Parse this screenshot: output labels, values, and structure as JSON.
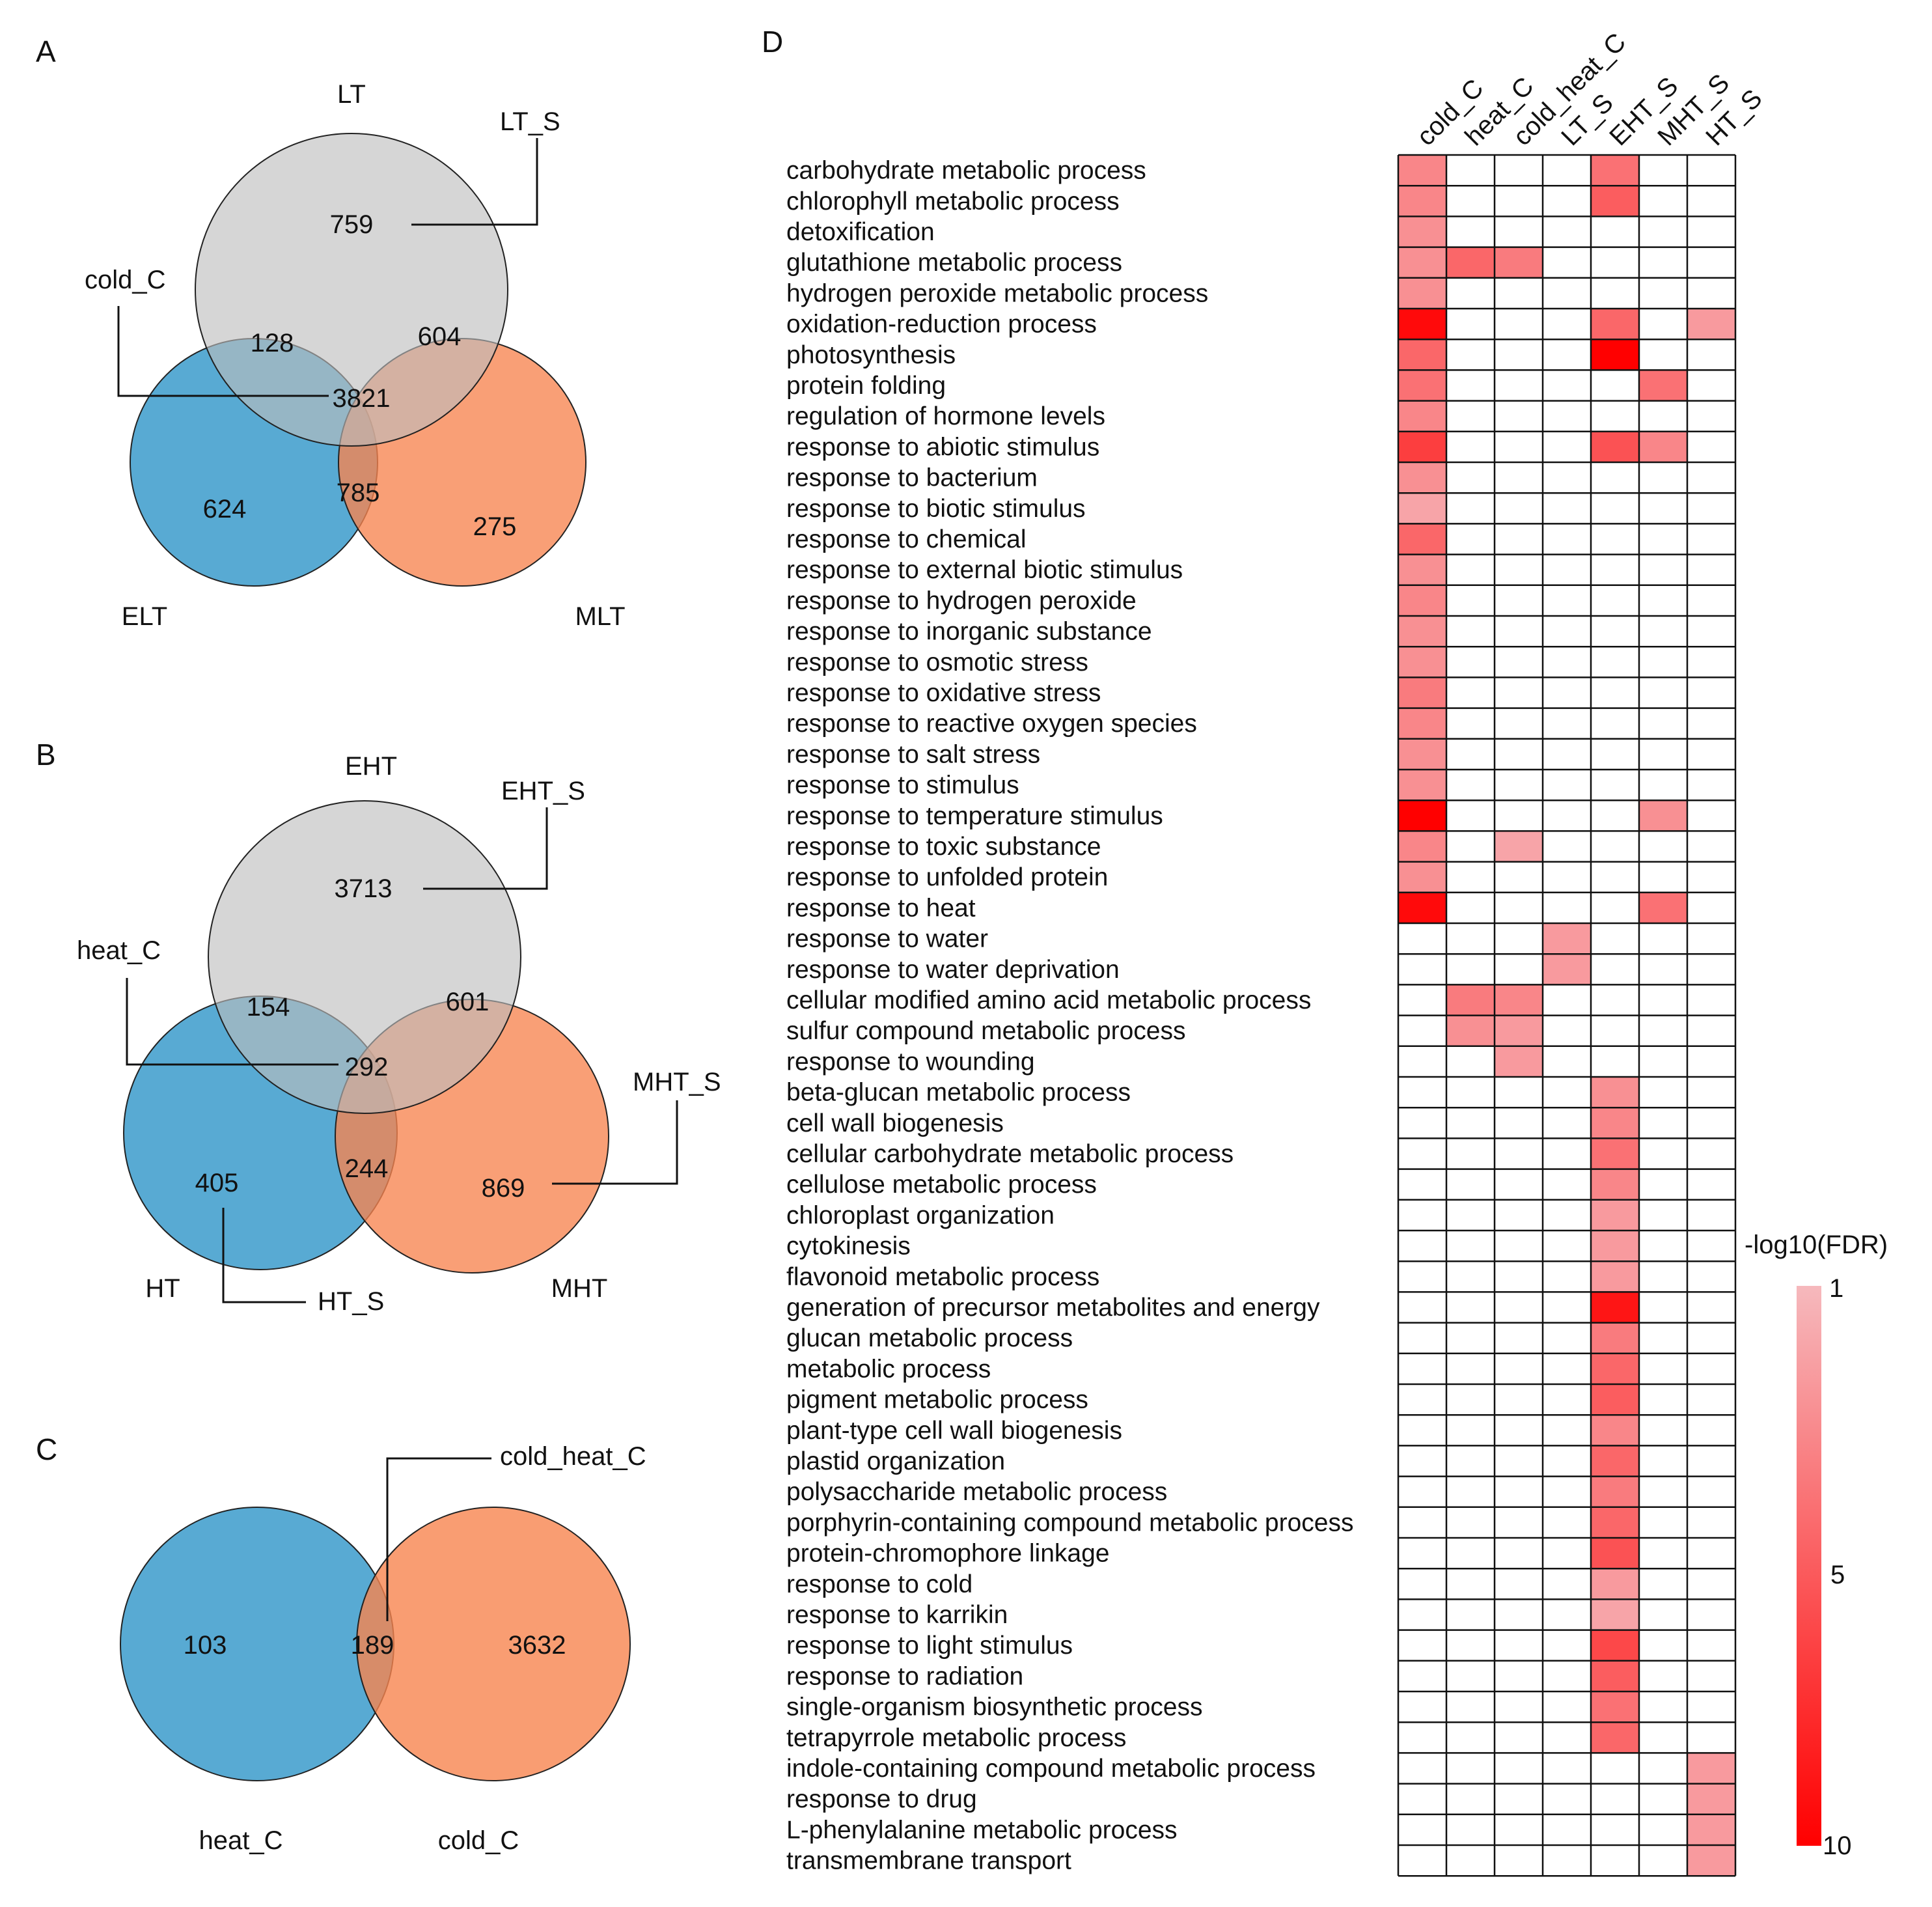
{
  "panels": {
    "A": {
      "letter": "A",
      "labels": {
        "top": "LT",
        "left": "ELT",
        "right": "MLT"
      },
      "callouts": {
        "top_only": "LT_S",
        "center": "cold_C"
      },
      "values": {
        "top_only": "759",
        "top_left": "128",
        "top_right": "604",
        "center": "3821",
        "left_only": "624",
        "left_right": "785",
        "right_only": "275"
      }
    },
    "B": {
      "letter": "B",
      "labels": {
        "top": "EHT",
        "left": "HT",
        "right": "MHT"
      },
      "callouts": {
        "top_only": "EHT_S",
        "center": "heat_C",
        "right_only": "MHT_S",
        "left_only": "HT_S"
      },
      "values": {
        "top_only": "3713",
        "top_left": "154",
        "top_right": "601",
        "center": "292",
        "left_only": "405",
        "left_right": "244",
        "right_only": "869"
      }
    },
    "C": {
      "letter": "C",
      "labels": {
        "left": "heat_C",
        "right": "cold_C"
      },
      "callouts": {
        "overlap": "cold_heat_C"
      },
      "values": {
        "left_only": "103",
        "overlap": "189",
        "right_only": "3632"
      }
    },
    "D": {
      "letter": "D"
    }
  },
  "colors": {
    "gray_circle": "#bdbdbd",
    "blue_circle": "#4aa3cf",
    "orange_circle": "#f7844f",
    "heat_low": "#f6b9bd",
    "heat_high": "#ff0000",
    "cell_border": "#111111"
  },
  "chart_data": {
    "type": "heatmap",
    "title": "",
    "legend_title": "-log10(FDR)",
    "legend_ticks": [
      "1",
      "5",
      "10"
    ],
    "value_range": [
      1,
      10
    ],
    "columns": [
      "cold_C",
      "heat_C",
      "cold_heat_C",
      "LT_S",
      "EHT_S",
      "MHT_S",
      "HT_S"
    ],
    "rows": [
      "carbohydrate metabolic process",
      "chlorophyll metabolic process",
      "detoxification",
      "glutathione metabolic process",
      "hydrogen peroxide metabolic process",
      "oxidation-reduction process",
      "photosynthesis",
      "protein folding",
      "regulation of hormone levels",
      "response to abiotic stimulus",
      "response to bacterium",
      "response to biotic stimulus",
      "response to chemical",
      "response to external biotic stimulus",
      "response to hydrogen peroxide",
      "response to inorganic substance",
      "response to osmotic stress",
      "response to oxidative stress",
      "response to reactive oxygen species",
      "response to salt stress",
      "response to stimulus",
      "response to temperature stimulus",
      "response to toxic substance",
      "response to unfolded protein",
      "response to heat",
      "response to water",
      "response to water deprivation",
      "cellular modified amino acid metabolic process",
      "sulfur compound metabolic process",
      "response to wounding",
      "beta-glucan metabolic process",
      "cell wall biogenesis",
      "cellular carbohydrate metabolic process",
      "cellulose metabolic process",
      "chloroplast organization",
      "cytokinesis",
      "flavonoid metabolic process",
      "generation of precursor metabolites and energy",
      "glucan metabolic process",
      "metabolic process",
      "pigment metabolic process",
      "plant-type cell wall biogenesis",
      "plastid organization",
      "polysaccharide metabolic process",
      "porphyrin-containing compound metabolic process",
      "protein-chromophore linkage",
      "response to cold",
      "response to karrikin",
      "response to light stimulus",
      "response to radiation",
      "single-organism biosynthetic process",
      "tetrapyrrole metabolic process",
      "indole-containing compound metabolic process",
      "response to drug",
      "L-phenylalanine metabolic process",
      "transmembrane transport"
    ],
    "values": [
      [
        3.5,
        null,
        null,
        null,
        4.5,
        null,
        null
      ],
      [
        3.5,
        null,
        null,
        null,
        5.5,
        null,
        null
      ],
      [
        3,
        null,
        null,
        null,
        null,
        null,
        null
      ],
      [
        3,
        5,
        4,
        null,
        null,
        null,
        null
      ],
      [
        3,
        null,
        null,
        null,
        null,
        null,
        null
      ],
      [
        9.5,
        null,
        null,
        null,
        5,
        null,
        2.5
      ],
      [
        5,
        null,
        null,
        null,
        10,
        null,
        null
      ],
      [
        4.5,
        null,
        null,
        null,
        null,
        4.5,
        null
      ],
      [
        3.5,
        null,
        null,
        null,
        null,
        null,
        null
      ],
      [
        7,
        null,
        null,
        null,
        6,
        3.5,
        null
      ],
      [
        3,
        null,
        null,
        null,
        null,
        null,
        null
      ],
      [
        2,
        null,
        null,
        null,
        null,
        null,
        null
      ],
      [
        5,
        null,
        null,
        null,
        null,
        null,
        null
      ],
      [
        3,
        null,
        null,
        null,
        null,
        null,
        null
      ],
      [
        3.5,
        null,
        null,
        null,
        null,
        null,
        null
      ],
      [
        3,
        null,
        null,
        null,
        null,
        null,
        null
      ],
      [
        3,
        null,
        null,
        null,
        null,
        null,
        null
      ],
      [
        4,
        null,
        null,
        null,
        null,
        null,
        null
      ],
      [
        3.5,
        null,
        null,
        null,
        null,
        null,
        null
      ],
      [
        3,
        null,
        null,
        null,
        null,
        null,
        null
      ],
      [
        3,
        null,
        null,
        null,
        null,
        null,
        null
      ],
      [
        10,
        null,
        null,
        null,
        null,
        3,
        null
      ],
      [
        3.5,
        null,
        2,
        null,
        null,
        null,
        null
      ],
      [
        3,
        null,
        null,
        null,
        null,
        null,
        null
      ],
      [
        9.5,
        null,
        null,
        null,
        null,
        4.5,
        null
      ],
      [
        null,
        null,
        null,
        2.5,
        null,
        null,
        null
      ],
      [
        null,
        null,
        null,
        2.5,
        null,
        null,
        null
      ],
      [
        null,
        4,
        3.5,
        null,
        null,
        null,
        null
      ],
      [
        null,
        3,
        2.5,
        null,
        null,
        null,
        null
      ],
      [
        null,
        null,
        2.5,
        null,
        null,
        null,
        null
      ],
      [
        null,
        null,
        null,
        null,
        3,
        null,
        null
      ],
      [
        null,
        null,
        null,
        null,
        3.5,
        null,
        null
      ],
      [
        null,
        null,
        null,
        null,
        4.5,
        null,
        null
      ],
      [
        null,
        null,
        null,
        null,
        3.5,
        null,
        null
      ],
      [
        null,
        null,
        null,
        null,
        2.5,
        null,
        null
      ],
      [
        null,
        null,
        null,
        null,
        2.5,
        null,
        null
      ],
      [
        null,
        null,
        null,
        null,
        2.5,
        null,
        null
      ],
      [
        null,
        null,
        null,
        null,
        9,
        null,
        null
      ],
      [
        null,
        null,
        null,
        null,
        4,
        null,
        null
      ],
      [
        null,
        null,
        null,
        null,
        5,
        null,
        null
      ],
      [
        null,
        null,
        null,
        null,
        5.5,
        null,
        null
      ],
      [
        null,
        null,
        null,
        null,
        3.5,
        null,
        null
      ],
      [
        null,
        null,
        null,
        null,
        5,
        null,
        null
      ],
      [
        null,
        null,
        null,
        null,
        4,
        null,
        null
      ],
      [
        null,
        null,
        null,
        null,
        5,
        null,
        null
      ],
      [
        null,
        null,
        null,
        null,
        6,
        null,
        null
      ],
      [
        null,
        null,
        null,
        null,
        2.5,
        null,
        null
      ],
      [
        null,
        null,
        null,
        null,
        2,
        null,
        null
      ],
      [
        null,
        null,
        null,
        null,
        6.5,
        null,
        null
      ],
      [
        null,
        null,
        null,
        null,
        5.5,
        null,
        null
      ],
      [
        null,
        null,
        null,
        null,
        4.5,
        null,
        null
      ],
      [
        null,
        null,
        null,
        null,
        5,
        null,
        null
      ],
      [
        null,
        null,
        null,
        null,
        null,
        null,
        2.5
      ],
      [
        null,
        null,
        null,
        null,
        null,
        null,
        2.5
      ],
      [
        null,
        null,
        null,
        null,
        null,
        null,
        2.5
      ],
      [
        null,
        null,
        null,
        null,
        null,
        null,
        2.5
      ]
    ]
  }
}
